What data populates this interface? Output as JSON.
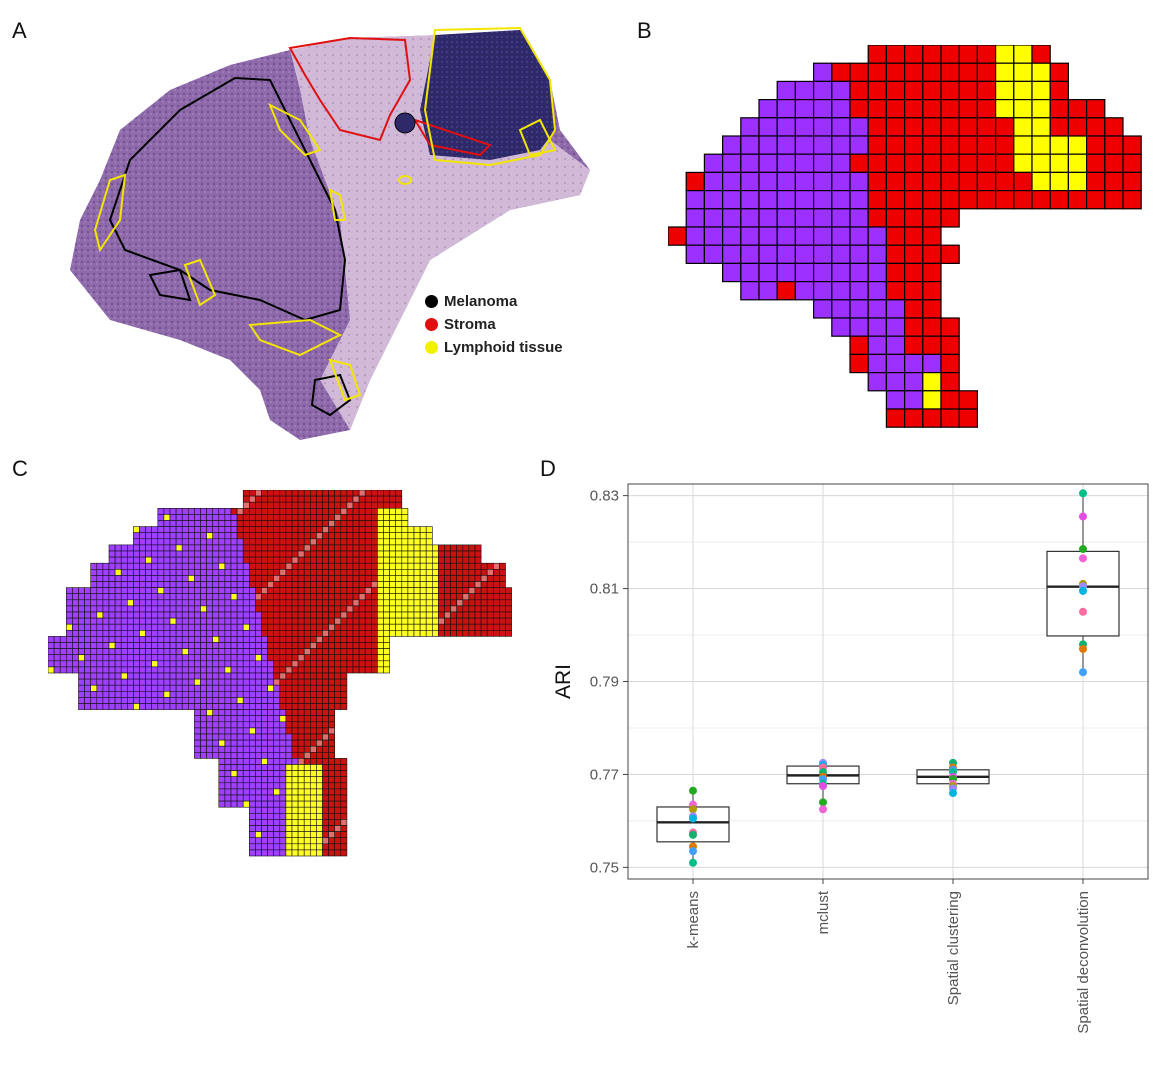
{
  "panels": {
    "a": "A",
    "b": "B",
    "c": "C",
    "d": "D"
  },
  "legend": {
    "items": [
      {
        "label": "Melanoma",
        "color": "#000000"
      },
      {
        "label": "Stroma",
        "color": "#e01010"
      },
      {
        "label": "Lymphoid tissue",
        "color": "#ffff00"
      }
    ]
  },
  "colors": {
    "melanoma_purple": "#9b30ff",
    "stroma_red": "#ee0000",
    "lymphoid_yellow": "#ffff00",
    "tissue_stain": "#9a78b8"
  },
  "chart_data": {
    "type": "box",
    "categories": [
      "k-means",
      "mclust",
      "Spatial clustering",
      "Spatial deconvolution"
    ],
    "ylabel": "ARI",
    "xlabel": "",
    "ylim": [
      0.7475,
      0.8325
    ],
    "yticks": [
      0.75,
      0.77,
      0.79,
      0.81,
      0.83
    ],
    "grid": true,
    "boxes": [
      {
        "min": 0.751,
        "q1": 0.7555,
        "median": 0.7597,
        "q3": 0.763,
        "max": 0.7665,
        "points": [
          0.7665,
          0.7635,
          0.7625,
          0.761,
          0.7605,
          0.7575,
          0.757,
          0.7545,
          0.7535,
          0.751
        ]
      },
      {
        "min": 0.7625,
        "q1": 0.768,
        "median": 0.7698,
        "q3": 0.7718,
        "max": 0.7725,
        "points": [
          0.7725,
          0.772,
          0.7715,
          0.7705,
          0.7695,
          0.769,
          0.768,
          0.7675,
          0.764,
          0.7625
        ]
      },
      {
        "min": 0.766,
        "q1": 0.768,
        "median": 0.7695,
        "q3": 0.771,
        "max": 0.7725,
        "points": [
          0.7725,
          0.7715,
          0.771,
          0.7705,
          0.7695,
          0.769,
          0.768,
          0.7675,
          0.767,
          0.766
        ]
      },
      {
        "min": 0.792,
        "q1": 0.7998,
        "median": 0.8104,
        "q3": 0.818,
        "max": 0.8305,
        "points": [
          0.8305,
          0.8255,
          0.8185,
          0.8165,
          0.811,
          0.8105,
          0.8095,
          0.805,
          0.798,
          0.797,
          0.792
        ]
      }
    ],
    "point_colors": [
      "#22aa22",
      "#f064d8",
      "#b09a00",
      "#9a8aff",
      "#00b4e0",
      "#ff6aa0",
      "#10b070",
      "#e07800",
      "#40a0ff",
      "#00c08a",
      "#e050e0"
    ]
  }
}
